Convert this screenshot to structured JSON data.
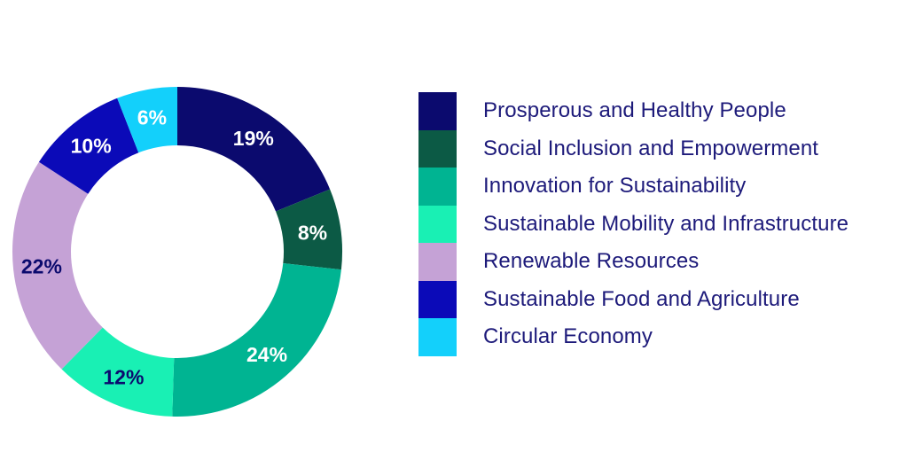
{
  "chart_data": {
    "type": "pie",
    "variant": "donut",
    "title": "",
    "slices": [
      {
        "name": "Prosperous and Healthy People",
        "value": 19,
        "label": "19%",
        "color": "#0b0a6e",
        "label_color": "#ffffff"
      },
      {
        "name": "Social Inclusion and Empowerment",
        "value": 8,
        "label": "8%",
        "color": "#0c5a45",
        "label_color": "#ffffff"
      },
      {
        "name": "Innovation for Sustainability",
        "value": 24,
        "label": "24%",
        "color": "#00b492",
        "label_color": "#ffffff"
      },
      {
        "name": "Sustainable Mobility and Infrastructure",
        "value": 12,
        "label": "12%",
        "color": "#19f0b4",
        "label_color": "#0b0a6e"
      },
      {
        "name": "Renewable Resources",
        "value": 22,
        "label": "22%",
        "color": "#c5a2d6",
        "label_color": "#0b0a6e"
      },
      {
        "name": "Sustainable Food and Agriculture",
        "value": 10,
        "label": "10%",
        "color": "#0b0ab8",
        "label_color": "#ffffff"
      },
      {
        "name": "Circular Economy",
        "value": 6,
        "label": "6%",
        "color": "#13d0fb",
        "label_color": "#ffffff"
      }
    ],
    "start_angle_deg": 0,
    "direction": "clockwise",
    "legend_position": "right"
  }
}
